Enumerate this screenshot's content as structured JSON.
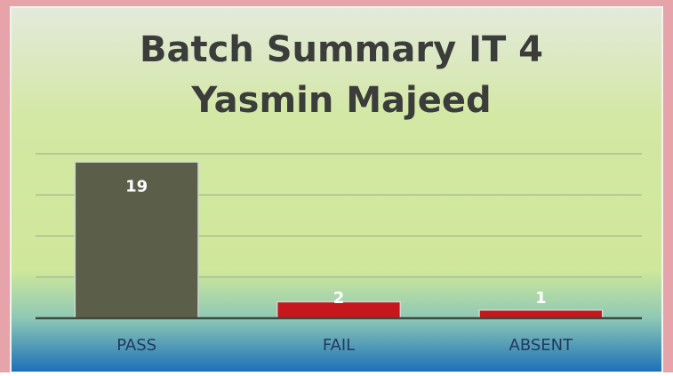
{
  "chart_data": {
    "type": "bar",
    "title": "Batch Summary IT 4",
    "subtitle": "Yasmin Majeed",
    "categories": [
      "PASS",
      "FAIL",
      "ABSENT"
    ],
    "values": [
      19,
      2,
      1
    ],
    "colors": [
      "#5b5e48",
      "#c8161d",
      "#c8161d"
    ],
    "ylim": [
      0,
      20
    ],
    "yticks": [
      0,
      5,
      10,
      15,
      20
    ],
    "grid": true
  }
}
